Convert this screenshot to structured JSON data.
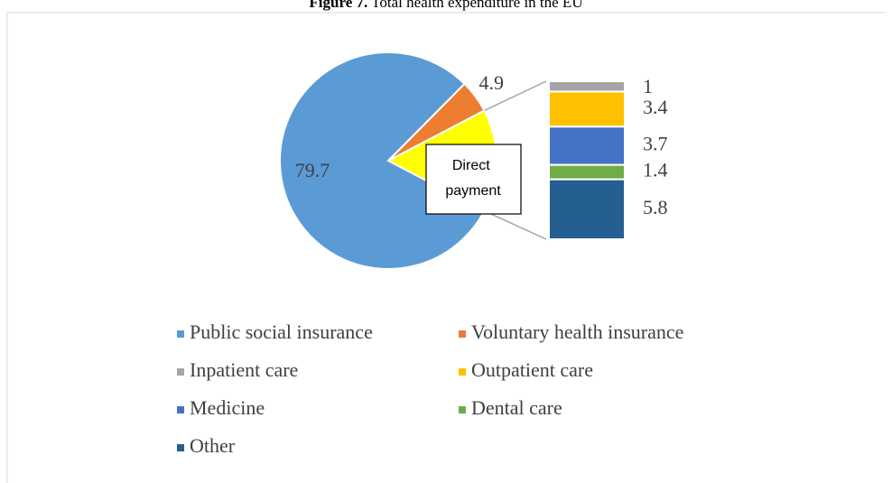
{
  "chart_data": {
    "type": "pie_of_bar",
    "title_prefix": "Figure 7.",
    "title": "Total health expenditure in the EU",
    "pie": {
      "categories": [
        "Public social insurance",
        "Voluntary health insurance",
        "Direct payment"
      ],
      "values": [
        79.7,
        4.9,
        15.3
      ],
      "colors": [
        "#5b9bd5",
        "#ed7d31",
        "#ffff00"
      ]
    },
    "bar": {
      "categories": [
        "Inpatient care",
        "Outpatient care",
        "Medicine",
        "Dental care",
        "Other"
      ],
      "values": [
        1,
        3.4,
        3.7,
        1.4,
        5.8
      ],
      "colors": [
        "#a5a5a5",
        "#ffc000",
        "#4472c4",
        "#70ad47",
        "#255e91"
      ]
    },
    "legend": "bottom"
  }
}
